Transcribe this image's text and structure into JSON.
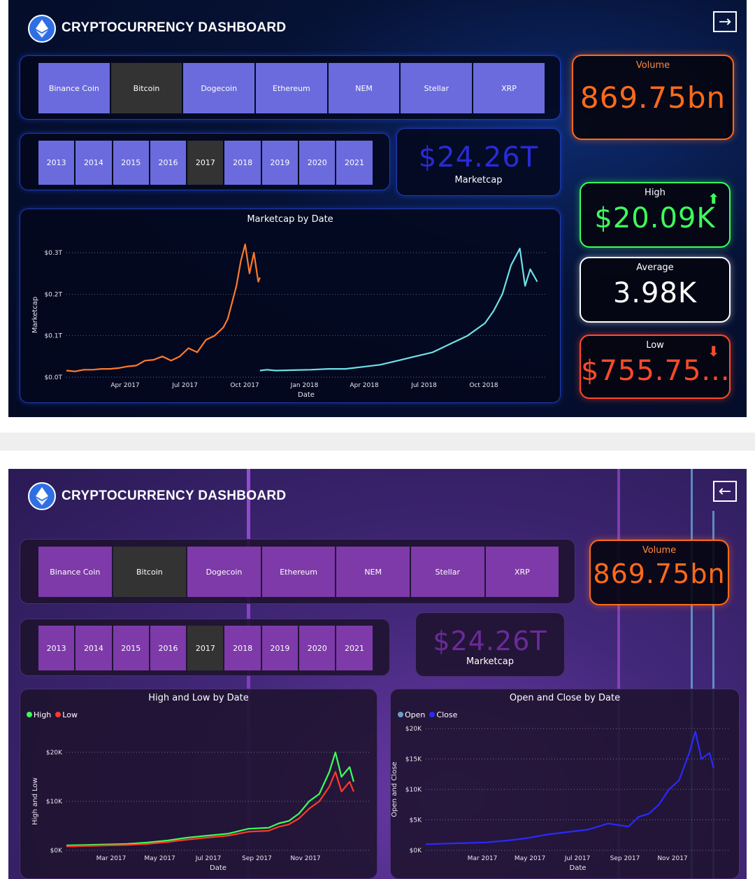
{
  "app": {
    "title": "CRYPTOCURRENCY DASHBOARD"
  },
  "screen1": {
    "nav_icon": "arrow-right-icon",
    "nav_glyph": "→"
  },
  "screen2": {
    "nav_icon": "arrow-left-icon",
    "nav_glyph": "←"
  },
  "coins": [
    "Binance Coin",
    "Bitcoin",
    "Dogecoin",
    "Ethereum",
    "NEM",
    "Stellar",
    "XRP"
  ],
  "selected_coin": "Bitcoin",
  "years": [
    "2013",
    "2014",
    "2015",
    "2016",
    "2017",
    "2018",
    "2019",
    "2020",
    "2021"
  ],
  "selected_year": "2017",
  "kpis": {
    "volume": {
      "label": "Volume",
      "value": "869.75bn",
      "color": "#ff6a1a"
    },
    "marketcap": {
      "label": "Marketcap",
      "value": "$24.26T"
    },
    "high": {
      "label": "High",
      "value": "$20.09K",
      "color": "#3cff5a",
      "icon": "arrow-up-icon"
    },
    "average": {
      "label": "Average",
      "value": "3.98K"
    },
    "low": {
      "label": "Low",
      "value": "$755.75...",
      "color": "#ff4a2a",
      "icon": "arrow-down-icon"
    }
  },
  "colors": {
    "screen1_button": "#6b6bde",
    "screen2_button": "#7d3aa8",
    "selected_button": "#333333",
    "marketcap_screen1": "#2a2ad8",
    "marketcap_screen2": "#6b2a9a"
  },
  "chart_data": [
    {
      "type": "line",
      "title": "Marketcap by Date",
      "xlabel": "Date",
      "ylabel": "Marketcap",
      "x_ticks": [
        "Apr 2017",
        "Jul 2017",
        "Oct 2017",
        "Jan 2018",
        "Apr 2018",
        "Jul 2018",
        "Oct 2018"
      ],
      "y_ticks": [
        "$0.0T",
        "$0.1T",
        "$0.2T",
        "$0.3T"
      ],
      "ylim": [
        0,
        0.3
      ],
      "grid": true,
      "series": [
        {
          "color": "#ff7a2a",
          "x": [
            0,
            0.5,
            1,
            1.5,
            2,
            2.5,
            3,
            3.5,
            4,
            4.5,
            5,
            5.5,
            6,
            6.5,
            7,
            7.5,
            8,
            8.5,
            9,
            9.25,
            9.5,
            9.75,
            10,
            10.25,
            10.5,
            10.75,
            11,
            11.1
          ],
          "y": [
            0.016,
            0.014,
            0.018,
            0.018,
            0.02,
            0.02,
            0.022,
            0.026,
            0.028,
            0.04,
            0.042,
            0.05,
            0.04,
            0.05,
            0.07,
            0.06,
            0.09,
            0.1,
            0.12,
            0.14,
            0.18,
            0.22,
            0.28,
            0.32,
            0.25,
            0.3,
            0.23,
            0.24
          ]
        },
        {
          "color": "#6fe0e6",
          "x": [
            11.1,
            11.5,
            12,
            13,
            14,
            15,
            16,
            17,
            18,
            19,
            20,
            21,
            22,
            23,
            24,
            24.5,
            25,
            25.5,
            26,
            26.3,
            26.6,
            27
          ],
          "y": [
            0.016,
            0.018,
            0.016,
            0.017,
            0.018,
            0.02,
            0.02,
            0.025,
            0.03,
            0.04,
            0.05,
            0.06,
            0.08,
            0.1,
            0.13,
            0.16,
            0.2,
            0.27,
            0.31,
            0.22,
            0.26,
            0.23
          ]
        }
      ]
    },
    {
      "type": "line",
      "title": "High and Low by Date",
      "xlabel": "Date",
      "ylabel": "High and Low",
      "x_ticks": [
        "Mar 2017",
        "May 2017",
        "Jul 2017",
        "Sep 2017",
        "Nov 2017"
      ],
      "y_ticks": [
        "$0K",
        "$10K",
        "$20K"
      ],
      "ylim": [
        0,
        20
      ],
      "grid": true,
      "series": [
        {
          "name": "High",
          "color": "#3cff5a",
          "x": [
            0,
            1,
            2,
            3,
            4,
            5,
            6,
            7,
            8,
            9,
            10,
            10.5,
            11,
            11.5,
            12,
            12.5,
            13,
            13.3,
            13.6,
            14,
            14.2
          ],
          "y": [
            1.0,
            1.1,
            1.2,
            1.3,
            1.6,
            2.0,
            2.6,
            3.0,
            3.4,
            4.4,
            4.6,
            5.5,
            6.0,
            7.5,
            10.0,
            11.5,
            16.0,
            20.0,
            15.0,
            17.0,
            14.0
          ]
        },
        {
          "name": "Low",
          "color": "#ff3a2a",
          "x": [
            0,
            1,
            2,
            3,
            4,
            5,
            6,
            7,
            8,
            9,
            10,
            10.5,
            11,
            11.5,
            12,
            12.5,
            13,
            13.3,
            13.6,
            14,
            14.2
          ],
          "y": [
            0.8,
            0.9,
            1.0,
            1.1,
            1.3,
            1.7,
            2.2,
            2.6,
            3.0,
            3.8,
            4.0,
            4.8,
            5.3,
            6.5,
            8.5,
            10.0,
            13.0,
            16.0,
            12.0,
            14.0,
            12.0
          ]
        }
      ]
    },
    {
      "type": "line",
      "title": "Open and Close by Date",
      "xlabel": "Date",
      "ylabel": "Open and Close",
      "x_ticks": [
        "Mar 2017",
        "May 2017",
        "Jul 2017",
        "Sep 2017",
        "Nov 2017"
      ],
      "y_ticks": [
        "$0K",
        "$5K",
        "$10K",
        "$15K",
        "$20K"
      ],
      "ylim": [
        0,
        20
      ],
      "grid": true,
      "series": [
        {
          "name": "Open",
          "color": "#6aa0c8",
          "x": [],
          "y": []
        },
        {
          "name": "Close",
          "color": "#2a2aff",
          "x": [
            0,
            1,
            2,
            3,
            4,
            5,
            6,
            7,
            8,
            9,
            10,
            10.5,
            11,
            11.5,
            12,
            12.5,
            13,
            13.3,
            13.6,
            14,
            14.2
          ],
          "y": [
            1.0,
            1.1,
            1.2,
            1.3,
            1.6,
            2.0,
            2.6,
            3.0,
            3.4,
            4.4,
            3.9,
            5.5,
            6.0,
            7.5,
            10.0,
            11.5,
            16.0,
            19.5,
            15.0,
            16.0,
            13.5
          ]
        }
      ]
    }
  ]
}
